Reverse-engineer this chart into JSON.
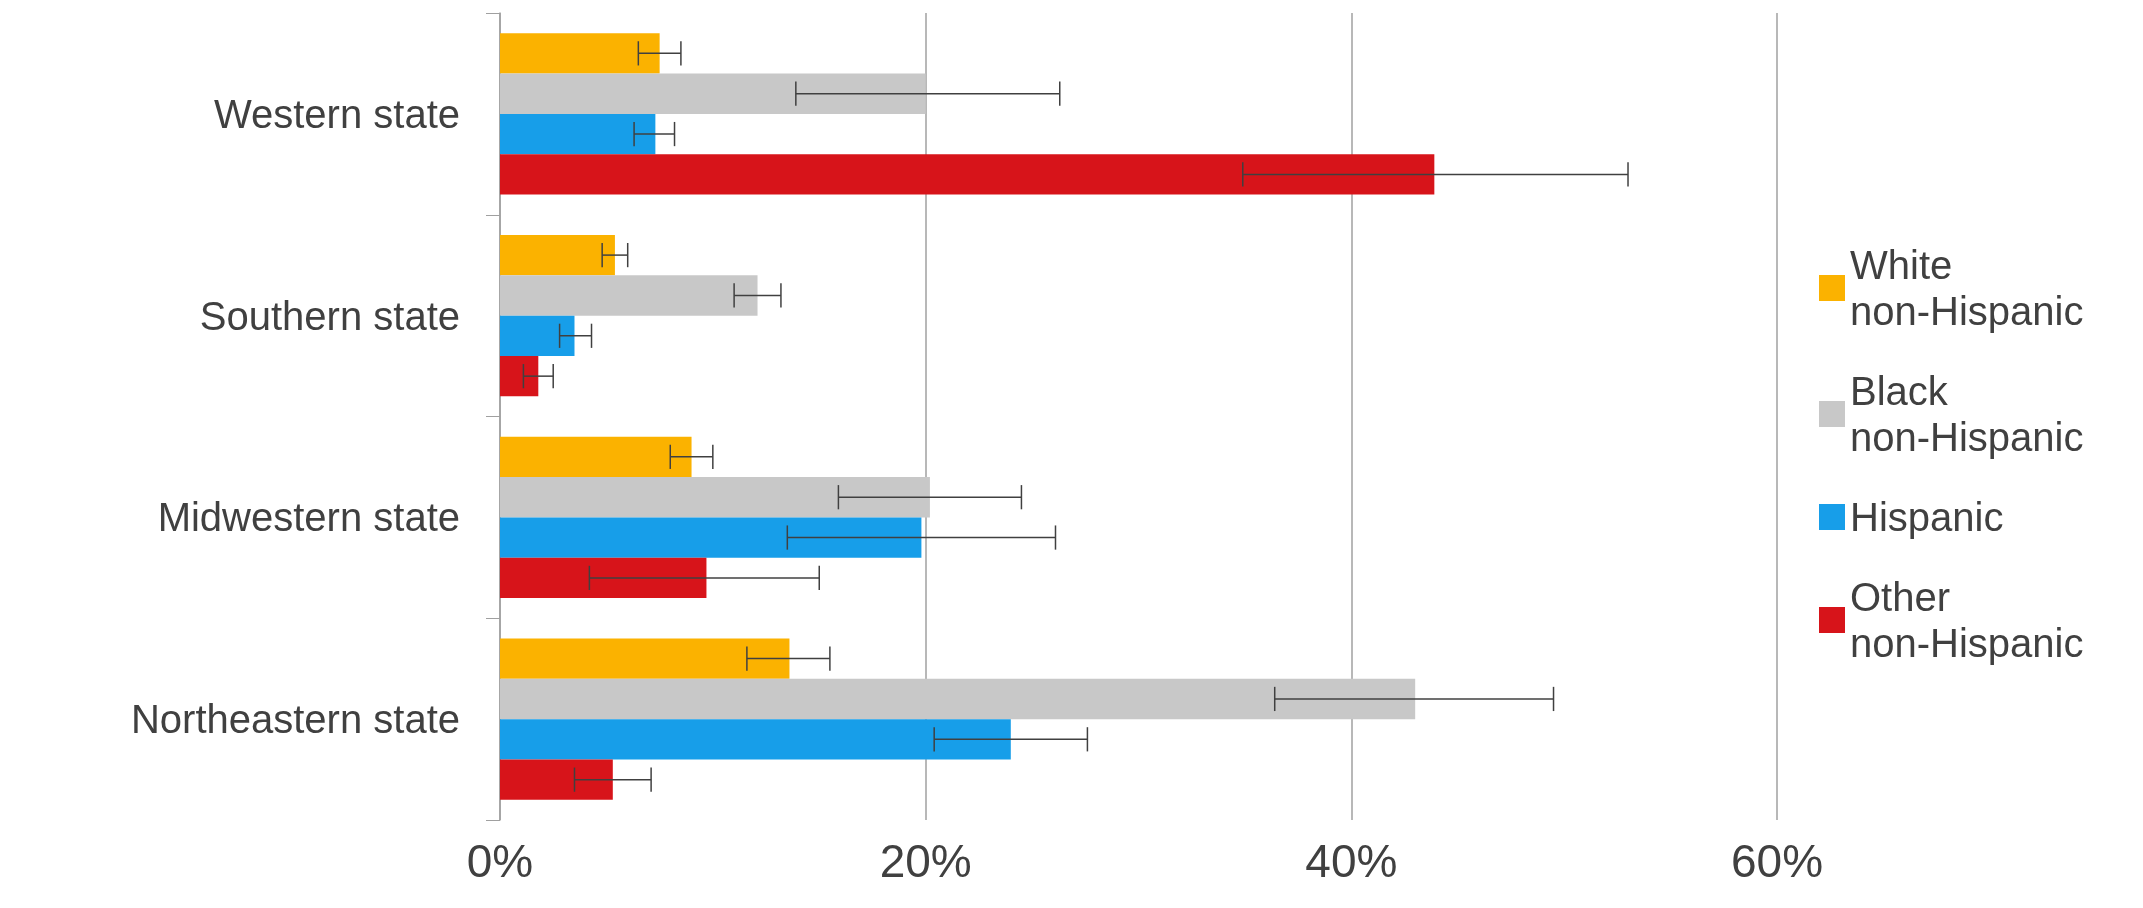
{
  "chart_data": {
    "type": "bar",
    "orientation": "horizontal",
    "categories": [
      "Western state",
      "Southern state",
      "Midwestern state",
      "Northeastern state"
    ],
    "series": [
      {
        "name": "White non-Hispanic",
        "color": "#fbb200",
        "values": [
          7.5,
          5.4,
          9.0,
          13.6
        ],
        "errors": [
          [
            6.5,
            8.5
          ],
          [
            4.8,
            6.0
          ],
          [
            8.0,
            10.0
          ],
          [
            11.6,
            15.5
          ]
        ]
      },
      {
        "name": "Black non-Hispanic",
        "color": "#c8c8c8",
        "values": [
          20.0,
          12.1,
          20.2,
          43.0
        ],
        "errors": [
          [
            13.9,
            26.3
          ],
          [
            11.0,
            13.2
          ],
          [
            15.9,
            24.5
          ],
          [
            36.4,
            49.5
          ]
        ]
      },
      {
        "name": "Hispanic",
        "color": "#179ee9",
        "values": [
          7.3,
          3.5,
          19.8,
          24.0
        ],
        "errors": [
          [
            6.3,
            8.2
          ],
          [
            2.8,
            4.3
          ],
          [
            13.5,
            26.1
          ],
          [
            20.4,
            27.6
          ]
        ]
      },
      {
        "name": "Other non-Hispanic",
        "color": "#d7141a",
        "values": [
          43.9,
          1.8,
          9.7,
          5.3
        ],
        "errors": [
          [
            34.9,
            53.0
          ],
          [
            1.1,
            2.5
          ],
          [
            4.2,
            15.0
          ],
          [
            3.5,
            7.1
          ]
        ]
      }
    ],
    "xlim": [
      0,
      60
    ],
    "xticks": [
      {
        "value": 0,
        "label": "0%"
      },
      {
        "value": 20,
        "label": "20%"
      },
      {
        "value": 40,
        "label": "40%"
      },
      {
        "value": 60,
        "label": "60%"
      }
    ],
    "grid": "x",
    "legend": "right"
  }
}
